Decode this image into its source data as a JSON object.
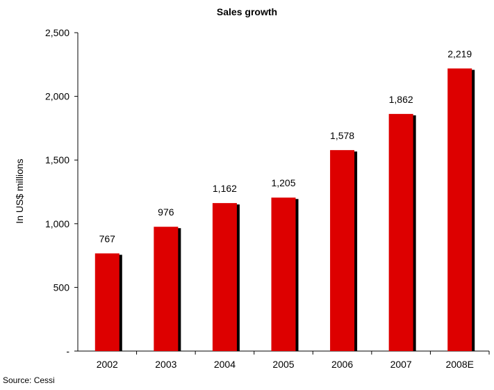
{
  "chart_data": {
    "type": "bar",
    "title": "Sales growth",
    "ylabel": "In US$ millions",
    "xlabel": "",
    "categories": [
      "2002",
      "2003",
      "2004",
      "2005",
      "2006",
      "2007",
      "2008E"
    ],
    "values": [
      767,
      976,
      1162,
      1205,
      1578,
      1862,
      2219
    ],
    "data_labels": [
      "767",
      "976",
      "1,162",
      "1,205",
      "1,578",
      "1,862",
      "2,219"
    ],
    "ylim": [
      0,
      2500
    ],
    "yticks": [
      0,
      500,
      1000,
      1500,
      2000,
      2500
    ],
    "ytick_labels": [
      "-",
      "500",
      "1,000",
      "1,500",
      "2,000",
      "2,500"
    ],
    "grid": false,
    "legend": "none",
    "bar_color": "#dd0000",
    "bar_shadow_color": "#000000"
  },
  "source_note": "Source: Cessi"
}
